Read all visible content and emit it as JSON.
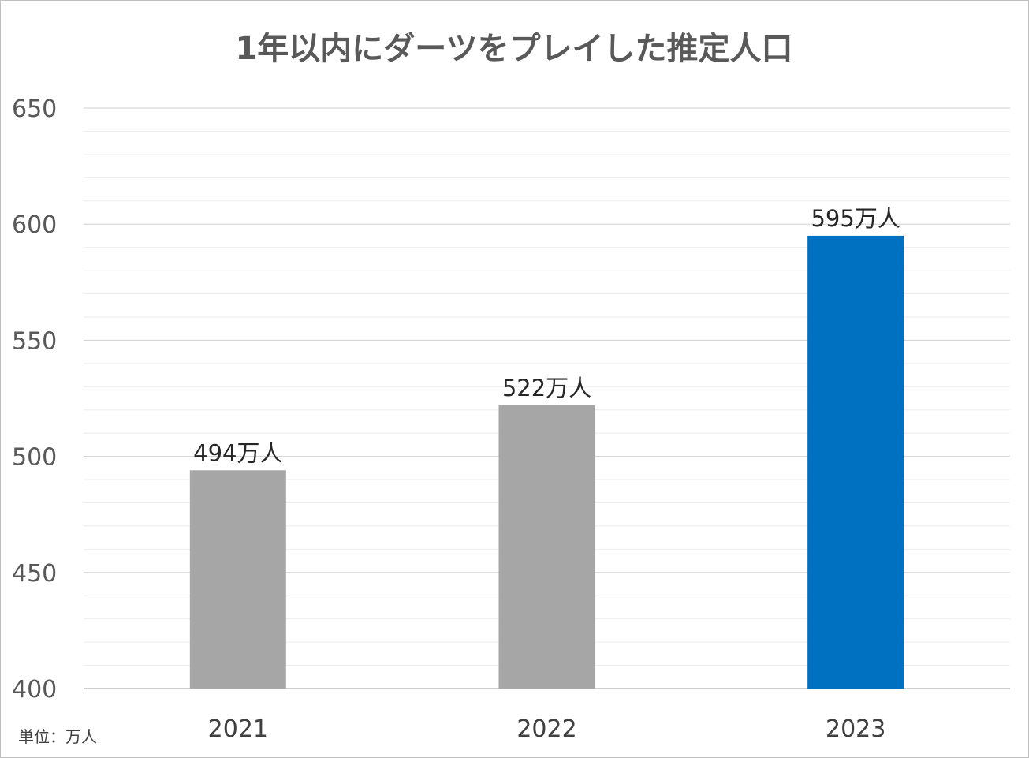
{
  "chart_data": {
    "type": "bar",
    "title": "1年以内にダーツをプレイした推定人口",
    "categories": [
      "2021",
      "2022",
      "2023"
    ],
    "values": [
      494,
      522,
      595
    ],
    "data_labels": [
      "494万人",
      "522万人",
      "595万人"
    ],
    "bar_colors": [
      "#a6a6a6",
      "#a6a6a6",
      "#0070c0"
    ],
    "ylim": [
      400,
      650
    ],
    "yticks": [
      400,
      450,
      500,
      550,
      600,
      650
    ],
    "minor_step": 10,
    "grid": true,
    "unit_note": "単位：万人",
    "xlabel": "",
    "ylabel": ""
  }
}
